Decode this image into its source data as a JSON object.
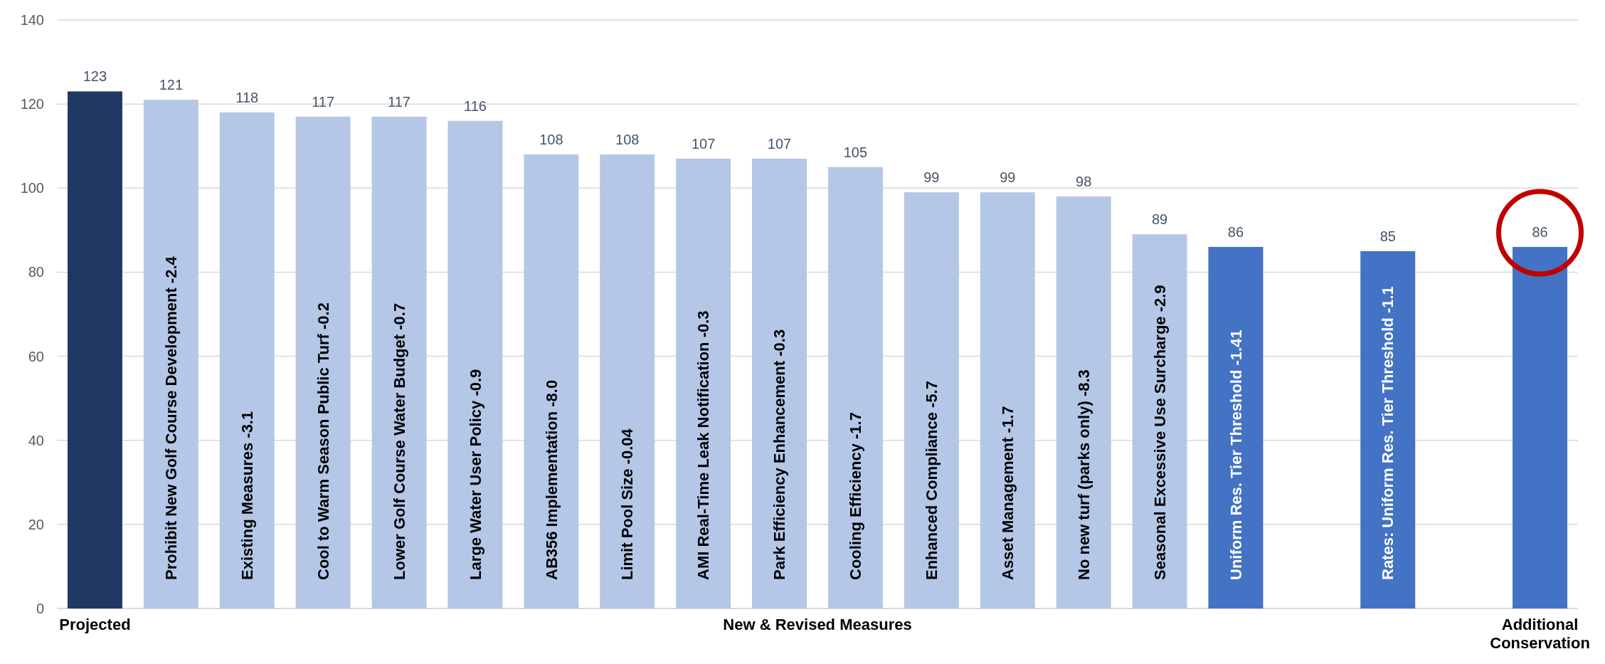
{
  "chart_data": {
    "type": "bar",
    "categories": [
      "Projected",
      "Prohibit New Golf Course Development -2.4",
      "Existing Measures -3.1",
      "Cool to Warm Season Public Turf -0.2",
      "Lower Golf Course Water Budget -0.7",
      "Large Water User Policy -0.9",
      "AB356 Implementation -8.0",
      "Limit Pool Size -0.04",
      "AMI Real-Time Leak Notification -0.3",
      "Park Efficiency Enhancement -0.3",
      "Cooling Efficiency -1.7",
      "Enhanced Compliance -5.7",
      "Asset Management -1.7",
      "No new turf (parks only) -8.3",
      "Seasonal Excessive Use Surcharge -2.9",
      "Uniform Res. Tier Threshold -1.41",
      null,
      "Rates: Uniform Res. Tier Threshold -1.1",
      null,
      "Additional Conservation"
    ],
    "values": [
      123,
      121,
      118,
      117,
      117,
      116,
      108,
      108,
      107,
      107,
      105,
      99,
      99,
      98,
      89,
      86,
      null,
      85,
      null,
      86
    ],
    "colors": [
      "#203864",
      "#b4c7e7",
      "#b4c7e7",
      "#b4c7e7",
      "#b4c7e7",
      "#b4c7e7",
      "#b4c7e7",
      "#b4c7e7",
      "#b4c7e7",
      "#b4c7e7",
      "#b4c7e7",
      "#b4c7e7",
      "#b4c7e7",
      "#b4c7e7",
      "#b4c7e7",
      "#4472c4",
      null,
      "#4472c4",
      null,
      "#4472c4"
    ],
    "ylim": [
      0,
      140
    ],
    "yticks": [
      0,
      20,
      40,
      60,
      80,
      100,
      120,
      140
    ],
    "grid": "y",
    "data_labels": true,
    "annotations": [
      "New & Revised Measures"
    ]
  }
}
